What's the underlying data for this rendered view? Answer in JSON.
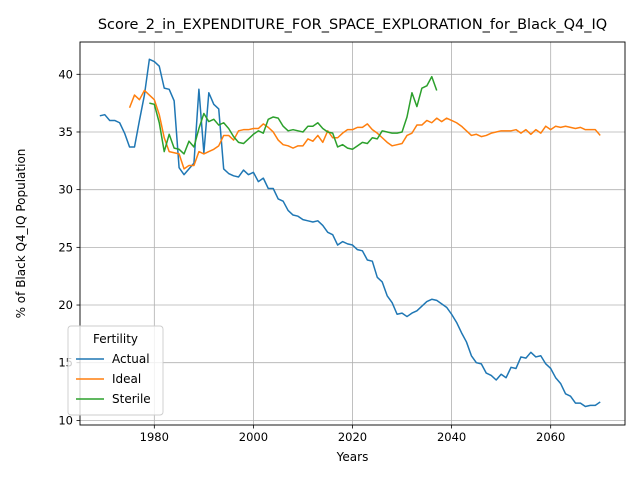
{
  "chart_data": {
    "type": "line",
    "title": "Score_2_in_EXPENDITURE_FOR_SPACE_EXPLORATION_for_Black_Q4_IQ",
    "xlabel": "Years",
    "ylabel": "% of Black Q4_IQ Population",
    "xlim": [
      1965,
      2075
    ],
    "ylim": [
      9.6,
      42.8
    ],
    "xticks": [
      1980,
      2000,
      2020,
      2040,
      2060
    ],
    "yticks": [
      10,
      15,
      20,
      25,
      30,
      35,
      40
    ],
    "grid": true,
    "legend": {
      "title": "Fertility",
      "placement": "lower-left"
    },
    "series": [
      {
        "name": "Actual",
        "color": "#1f77b4",
        "points": [
          [
            1969,
            36.4
          ],
          [
            1970,
            36.5
          ],
          [
            1971,
            36.0
          ],
          [
            1972,
            36.0
          ],
          [
            1973,
            35.8
          ],
          [
            1974,
            34.9
          ],
          [
            1975,
            33.7
          ],
          [
            1976,
            33.7
          ],
          [
            1977,
            36.0
          ],
          [
            1978,
            38.2
          ],
          [
            1979,
            41.3
          ],
          [
            1980,
            41.1
          ],
          [
            1981,
            40.7
          ],
          [
            1982,
            38.8
          ],
          [
            1983,
            38.7
          ],
          [
            1984,
            37.7
          ],
          [
            1985,
            31.9
          ],
          [
            1986,
            31.3
          ],
          [
            1987,
            31.8
          ],
          [
            1988,
            32.3
          ],
          [
            1989,
            38.7
          ],
          [
            1990,
            33.2
          ],
          [
            1991,
            38.4
          ],
          [
            1992,
            37.4
          ],
          [
            1993,
            37.0
          ],
          [
            1994,
            31.8
          ],
          [
            1995,
            31.4
          ],
          [
            1996,
            31.2
          ],
          [
            1997,
            31.1
          ],
          [
            1998,
            31.7
          ],
          [
            1999,
            31.3
          ],
          [
            2000,
            31.5
          ],
          [
            2001,
            30.7
          ],
          [
            2002,
            31.0
          ],
          [
            2003,
            30.1
          ],
          [
            2004,
            30.1
          ],
          [
            2005,
            29.2
          ],
          [
            2006,
            29.0
          ],
          [
            2007,
            28.2
          ],
          [
            2008,
            27.8
          ],
          [
            2009,
            27.7
          ],
          [
            2010,
            27.4
          ],
          [
            2011,
            27.3
          ],
          [
            2012,
            27.2
          ],
          [
            2013,
            27.3
          ],
          [
            2014,
            26.9
          ],
          [
            2015,
            26.3
          ],
          [
            2016,
            26.1
          ],
          [
            2017,
            25.2
          ],
          [
            2018,
            25.5
          ],
          [
            2019,
            25.3
          ],
          [
            2020,
            25.2
          ],
          [
            2021,
            24.8
          ],
          [
            2022,
            24.7
          ],
          [
            2023,
            23.9
          ],
          [
            2024,
            23.8
          ],
          [
            2025,
            22.4
          ],
          [
            2026,
            22.0
          ],
          [
            2027,
            20.8
          ],
          [
            2028,
            20.2
          ],
          [
            2029,
            19.2
          ],
          [
            2030,
            19.3
          ],
          [
            2031,
            19.0
          ],
          [
            2032,
            19.3
          ],
          [
            2033,
            19.5
          ],
          [
            2034,
            19.9
          ],
          [
            2035,
            20.3
          ],
          [
            2036,
            20.5
          ],
          [
            2037,
            20.4
          ],
          [
            2038,
            20.1
          ],
          [
            2039,
            19.8
          ],
          [
            2040,
            19.2
          ],
          [
            2041,
            18.5
          ],
          [
            2042,
            17.6
          ],
          [
            2043,
            16.8
          ],
          [
            2044,
            15.6
          ],
          [
            2045,
            15.0
          ],
          [
            2046,
            14.9
          ],
          [
            2047,
            14.1
          ],
          [
            2048,
            13.9
          ],
          [
            2049,
            13.5
          ],
          [
            2050,
            14.0
          ],
          [
            2051,
            13.7
          ],
          [
            2052,
            14.6
          ],
          [
            2053,
            14.5
          ],
          [
            2054,
            15.5
          ],
          [
            2055,
            15.4
          ],
          [
            2056,
            15.9
          ],
          [
            2057,
            15.5
          ],
          [
            2058,
            15.6
          ],
          [
            2059,
            14.9
          ],
          [
            2060,
            14.5
          ],
          [
            2061,
            13.7
          ],
          [
            2062,
            13.2
          ],
          [
            2063,
            12.3
          ],
          [
            2064,
            12.1
          ],
          [
            2065,
            11.5
          ],
          [
            2066,
            11.5
          ],
          [
            2067,
            11.2
          ],
          [
            2068,
            11.3
          ],
          [
            2069,
            11.3
          ],
          [
            2070,
            11.6
          ]
        ]
      },
      {
        "name": "Ideal",
        "color": "#ff7f0e",
        "points": [
          [
            1975,
            37.1
          ],
          [
            1976,
            38.2
          ],
          [
            1977,
            37.8
          ],
          [
            1978,
            38.6
          ],
          [
            1979,
            38.2
          ],
          [
            1980,
            37.8
          ],
          [
            1981,
            36.5
          ],
          [
            1982,
            34.5
          ],
          [
            1983,
            33.3
          ],
          [
            1984,
            33.2
          ],
          [
            1985,
            33.1
          ],
          [
            1986,
            31.8
          ],
          [
            1987,
            32.1
          ],
          [
            1988,
            32.1
          ],
          [
            1989,
            33.3
          ],
          [
            1990,
            33.1
          ],
          [
            1991,
            33.3
          ],
          [
            1992,
            33.5
          ],
          [
            1993,
            33.8
          ],
          [
            1994,
            34.7
          ],
          [
            1995,
            34.7
          ],
          [
            1996,
            34.3
          ],
          [
            1997,
            35.1
          ],
          [
            1998,
            35.2
          ],
          [
            1999,
            35.2
          ],
          [
            2000,
            35.3
          ],
          [
            2001,
            35.3
          ],
          [
            2002,
            35.7
          ],
          [
            2003,
            35.4
          ],
          [
            2004,
            35.0
          ],
          [
            2005,
            34.3
          ],
          [
            2006,
            33.9
          ],
          [
            2007,
            33.8
          ],
          [
            2008,
            33.6
          ],
          [
            2009,
            33.8
          ],
          [
            2010,
            33.8
          ],
          [
            2011,
            34.4
          ],
          [
            2012,
            34.2
          ],
          [
            2013,
            34.7
          ],
          [
            2014,
            34.1
          ],
          [
            2015,
            35.1
          ],
          [
            2016,
            34.5
          ],
          [
            2017,
            34.5
          ],
          [
            2018,
            34.9
          ],
          [
            2019,
            35.2
          ],
          [
            2020,
            35.2
          ],
          [
            2021,
            35.4
          ],
          [
            2022,
            35.4
          ],
          [
            2023,
            35.7
          ],
          [
            2024,
            35.2
          ],
          [
            2025,
            34.9
          ],
          [
            2026,
            34.5
          ],
          [
            2027,
            34.1
          ],
          [
            2028,
            33.8
          ],
          [
            2029,
            33.9
          ],
          [
            2030,
            34.0
          ],
          [
            2031,
            34.7
          ],
          [
            2032,
            34.9
          ],
          [
            2033,
            35.6
          ],
          [
            2034,
            35.6
          ],
          [
            2035,
            36.0
          ],
          [
            2036,
            35.8
          ],
          [
            2037,
            36.2
          ],
          [
            2038,
            35.9
          ],
          [
            2039,
            36.2
          ],
          [
            2040,
            36.0
          ],
          [
            2041,
            35.8
          ],
          [
            2042,
            35.5
          ],
          [
            2043,
            35.1
          ],
          [
            2044,
            34.7
          ],
          [
            2045,
            34.8
          ],
          [
            2046,
            34.6
          ],
          [
            2047,
            34.7
          ],
          [
            2048,
            34.9
          ],
          [
            2049,
            35.0
          ],
          [
            2050,
            35.1
          ],
          [
            2051,
            35.1
          ],
          [
            2052,
            35.1
          ],
          [
            2053,
            35.2
          ],
          [
            2054,
            34.9
          ],
          [
            2055,
            35.2
          ],
          [
            2056,
            34.8
          ],
          [
            2057,
            35.2
          ],
          [
            2058,
            34.9
          ],
          [
            2059,
            35.5
          ],
          [
            2060,
            35.2
          ],
          [
            2061,
            35.5
          ],
          [
            2062,
            35.4
          ],
          [
            2063,
            35.5
          ],
          [
            2064,
            35.4
          ],
          [
            2065,
            35.3
          ],
          [
            2066,
            35.4
          ],
          [
            2067,
            35.2
          ],
          [
            2068,
            35.2
          ],
          [
            2069,
            35.2
          ],
          [
            2070,
            34.7
          ]
        ]
      },
      {
        "name": "Sterile",
        "color": "#2ca02c",
        "points": [
          [
            1979,
            37.5
          ],
          [
            1980,
            37.4
          ],
          [
            1981,
            35.8
          ],
          [
            1982,
            33.3
          ],
          [
            1983,
            34.8
          ],
          [
            1984,
            33.6
          ],
          [
            1985,
            33.5
          ],
          [
            1986,
            33.1
          ],
          [
            1987,
            34.2
          ],
          [
            1988,
            33.7
          ],
          [
            1989,
            35.3
          ],
          [
            1990,
            36.6
          ],
          [
            1991,
            35.9
          ],
          [
            1992,
            36.1
          ],
          [
            1993,
            35.6
          ],
          [
            1994,
            35.8
          ],
          [
            1995,
            35.3
          ],
          [
            1996,
            34.6
          ],
          [
            1997,
            34.1
          ],
          [
            1998,
            34.0
          ],
          [
            1999,
            34.4
          ],
          [
            2000,
            34.8
          ],
          [
            2001,
            35.1
          ],
          [
            2002,
            34.9
          ],
          [
            2003,
            36.1
          ],
          [
            2004,
            36.3
          ],
          [
            2005,
            36.2
          ],
          [
            2006,
            35.5
          ],
          [
            2007,
            35.1
          ],
          [
            2008,
            35.2
          ],
          [
            2009,
            35.1
          ],
          [
            2010,
            35.0
          ],
          [
            2011,
            35.5
          ],
          [
            2012,
            35.5
          ],
          [
            2013,
            35.8
          ],
          [
            2014,
            35.3
          ],
          [
            2015,
            35.0
          ],
          [
            2016,
            34.9
          ],
          [
            2017,
            33.7
          ],
          [
            2018,
            33.9
          ],
          [
            2019,
            33.6
          ],
          [
            2020,
            33.5
          ],
          [
            2021,
            33.8
          ],
          [
            2022,
            34.1
          ],
          [
            2023,
            34.0
          ],
          [
            2024,
            34.5
          ],
          [
            2025,
            34.4
          ],
          [
            2026,
            35.1
          ],
          [
            2027,
            35.0
          ],
          [
            2028,
            34.9
          ],
          [
            2029,
            34.9
          ],
          [
            2030,
            35.0
          ],
          [
            2031,
            36.3
          ],
          [
            2032,
            38.4
          ],
          [
            2033,
            37.2
          ],
          [
            2034,
            38.8
          ],
          [
            2035,
            39.0
          ],
          [
            2036,
            39.8
          ],
          [
            2037,
            38.6
          ]
        ]
      }
    ]
  }
}
